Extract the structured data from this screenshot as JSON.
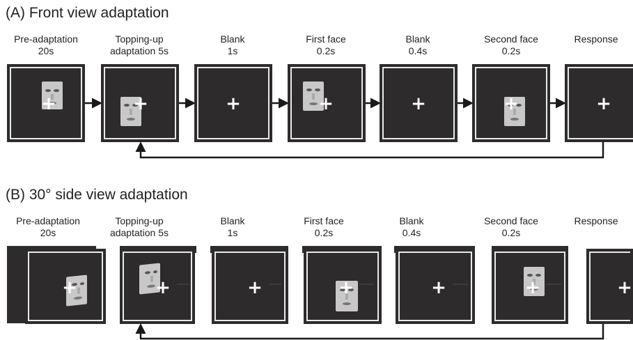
{
  "sections": [
    {
      "title": "(A) Front view adaptation",
      "stages": [
        {
          "line1": "Pre-adaptation",
          "line2": "20s"
        },
        {
          "line1": "Topping-up",
          "line2": "adaptation 5s"
        },
        {
          "line1": "Blank",
          "line2": "1s"
        },
        {
          "line1": "First face",
          "line2": "0.2s"
        },
        {
          "line1": "Blank",
          "line2": "0.4s"
        },
        {
          "line1": "Second face",
          "line2": "0.2s"
        },
        {
          "line1": "Response",
          "line2": ""
        }
      ],
      "fixation_symbol": "+"
    },
    {
      "title": "(B) 30° side view adaptation",
      "stages": [
        {
          "line1": "Pre-adaptation",
          "line2": "20s"
        },
        {
          "line1": "Topping-up",
          "line2": "adaptation 5s"
        },
        {
          "line1": "Blank",
          "line2": "1s"
        },
        {
          "line1": "First face",
          "line2": "0.2s"
        },
        {
          "line1": "Blank",
          "line2": "0.4s"
        },
        {
          "line1": "Second face",
          "line2": "0.2s"
        },
        {
          "line1": "Response",
          "line2": ""
        }
      ],
      "fixation_symbol": "+"
    }
  ],
  "colors": {
    "panel": "#2d2b2b",
    "frame_line": "#eaeaea",
    "arrow": "#1a1a1a",
    "face": "#c8c8c8"
  }
}
